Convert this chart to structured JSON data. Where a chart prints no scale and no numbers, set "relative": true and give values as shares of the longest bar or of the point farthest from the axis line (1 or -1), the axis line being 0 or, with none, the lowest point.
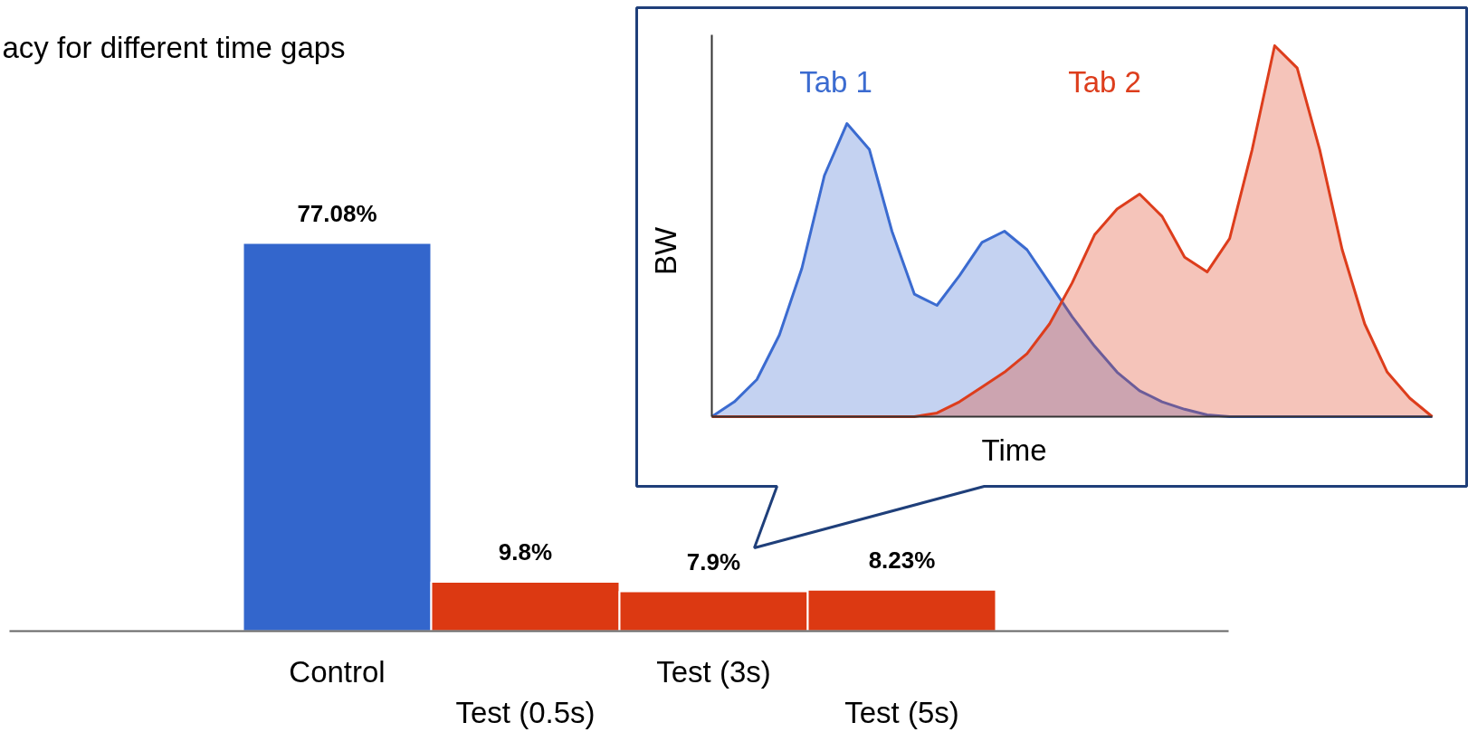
{
  "chart_data": [
    {
      "type": "bar",
      "title": "acy for different time gaps",
      "categories": [
        "Control",
        "Test (0.5s)",
        "Test (3s)",
        "Test (5s)"
      ],
      "values": [
        77.08,
        9.8,
        7.9,
        8.23
      ],
      "colors": [
        "#3366cc",
        "#dc3912",
        "#dc3912",
        "#dc3912"
      ],
      "value_labels": [
        "77.08%",
        "9.8%",
        "7.9%",
        "8.23%"
      ]
    },
    {
      "type": "area",
      "relative": true,
      "xlabel": "Time",
      "ylabel": "BW",
      "categories": [
        null,
        null,
        null,
        null,
        null,
        null,
        null,
        null,
        null,
        null,
        null,
        null,
        null,
        null,
        null,
        null,
        null,
        null,
        null,
        null,
        null,
        null,
        null,
        null,
        null,
        null,
        null,
        null,
        null,
        null,
        null,
        null,
        null
      ],
      "series": [
        {
          "name": "Tab 1",
          "color": "#3b6bd0",
          "values": [
            0,
            0.04,
            0.1,
            0.22,
            0.4,
            0.65,
            0.79,
            0.72,
            0.5,
            0.33,
            0.3,
            0.38,
            0.47,
            0.5,
            0.45,
            0.36,
            0.27,
            0.19,
            0.12,
            0.07,
            0.04,
            0.02,
            0.005,
            0,
            0,
            0,
            0,
            0,
            0,
            0,
            0,
            0,
            0
          ]
        },
        {
          "name": "Tab 2",
          "color": "#dd3d1c",
          "values": [
            0,
            0,
            0,
            0,
            0,
            0,
            0,
            0,
            0,
            0,
            0.01,
            0.04,
            0.08,
            0.12,
            0.17,
            0.25,
            0.36,
            0.49,
            0.56,
            0.6,
            0.54,
            0.43,
            0.39,
            0.48,
            0.72,
            1.0,
            0.94,
            0.72,
            0.45,
            0.25,
            0.12,
            0.05,
            0
          ]
        }
      ]
    }
  ]
}
